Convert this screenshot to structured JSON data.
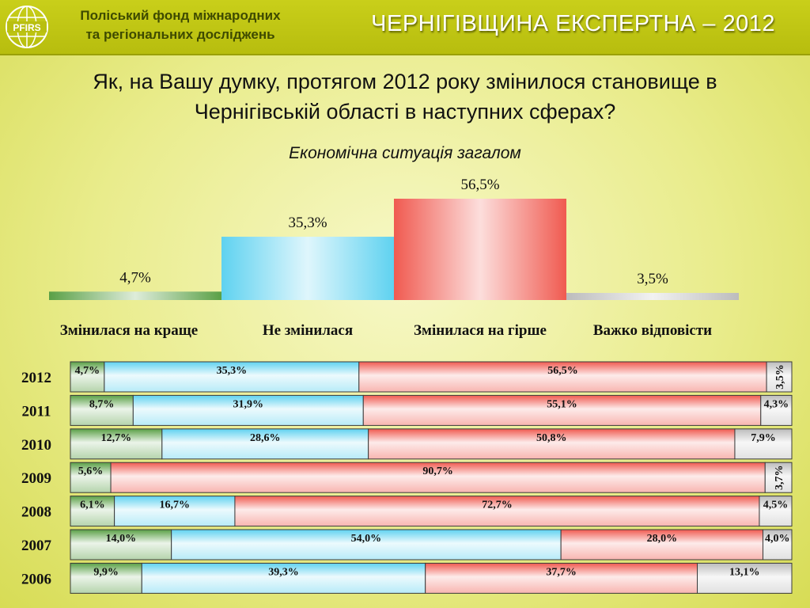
{
  "header": {
    "org_line1": "Поліський фонд міжнародних",
    "org_line2": "та регіональних досліджень",
    "logo_text": "PFIRS",
    "brand": "ЧЕРНІГІВЩИНА ЕКСПЕРТНА – 2012"
  },
  "question": {
    "line1": "Як, на Вашу думку, протягом 2012 року змінилося становище в",
    "line2": "Чернігівській області в наступних сферах?"
  },
  "subtitle": "Економічна ситуація загалом",
  "colors": {
    "better": "#5aa046",
    "same": "#5fd2f0",
    "worse": "#f05a50",
    "hard": "#bcbcbc"
  },
  "chart_data": [
    {
      "type": "bar",
      "categories": [
        "Змінилася на краще",
        "Не змінилася",
        "Змінилася на гірше",
        "Важко відповісти"
      ],
      "values": [
        4.7,
        35.3,
        56.5,
        3.5
      ],
      "value_labels": [
        "4,7%",
        "35,3%",
        "56,5%",
        "3,5%"
      ],
      "ylim": [
        0,
        56.5
      ]
    },
    {
      "type": "bar",
      "orientation": "horizontal",
      "stacked": true,
      "percent": true,
      "categories": [
        "2012",
        "2011",
        "2010",
        "2009",
        "2008",
        "2007",
        "2006"
      ],
      "series": [
        {
          "key": "better",
          "values": [
            4.7,
            8.7,
            12.7,
            5.6,
            6.1,
            14.0,
            9.9
          ],
          "labels": [
            "4,7%",
            "8,7%",
            "12,7%",
            "5,6%",
            "6,1%",
            "14,0%",
            "9,9%"
          ]
        },
        {
          "key": "same",
          "values": [
            35.3,
            31.9,
            28.6,
            null,
            16.7,
            54.0,
            39.3
          ],
          "labels": [
            "35,3%",
            "31,9%",
            "28,6%",
            "",
            "16,7%",
            "54,0%",
            "39,3%"
          ]
        },
        {
          "key": "worse",
          "values": [
            56.5,
            55.1,
            50.8,
            90.7,
            72.7,
            28.0,
            37.7
          ],
          "labels": [
            "56,5%",
            "55,1%",
            "50,8%",
            "90,7%",
            "72,7%",
            "28,0%",
            "37,7%"
          ]
        },
        {
          "key": "hard",
          "values": [
            3.5,
            4.3,
            7.9,
            3.7,
            4.5,
            4.0,
            13.1
          ],
          "labels": [
            "3,5%",
            "4,3%",
            "7,9%",
            "3,7%",
            "4,5%",
            "4,0%",
            "13,1%"
          ]
        }
      ]
    }
  ]
}
